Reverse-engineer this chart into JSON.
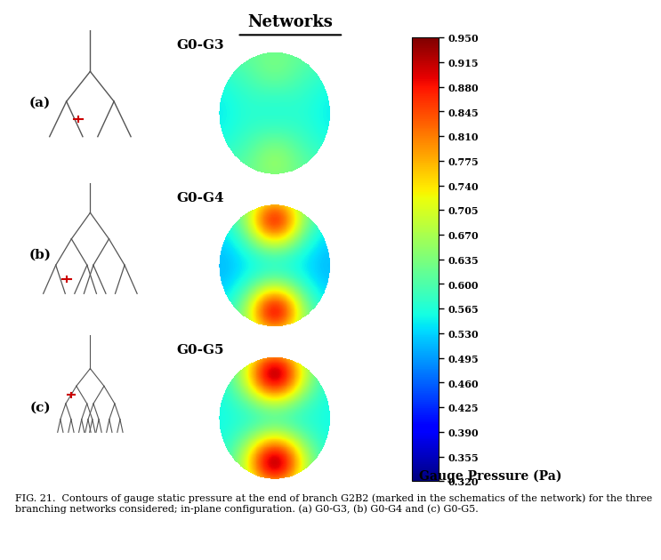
{
  "title": "Networks",
  "colorbar_min": 0.32,
  "colorbar_max": 0.95,
  "colorbar_ticks": [
    0.95,
    0.915,
    0.88,
    0.845,
    0.81,
    0.775,
    0.74,
    0.705,
    0.67,
    0.635,
    0.6,
    0.565,
    0.53,
    0.495,
    0.46,
    0.425,
    0.39,
    0.355,
    0.32
  ],
  "colorbar_label": "Gauge Pressure (Pa)",
  "panel_labels": [
    "(a)",
    "(b)",
    "(c)"
  ],
  "panel_titles": [
    "G0-G3",
    "G0-G4",
    "G0-G5"
  ],
  "patterns": [
    "hourglass_mild",
    "hourglass_moderate",
    "hourglass_strong"
  ],
  "caption": "FIG. 21.  Contours of gauge static pressure at the end of branch G2B2 (marked in the schematics of the network) for the three\nbranching networks considered; in-plane configuration. (a) G0-G3, (b) G0-G4 and (c) G0-G5.",
  "background_color": "#ffffff",
  "tree_color": "#555555",
  "red_mark_color": "#cc0000"
}
